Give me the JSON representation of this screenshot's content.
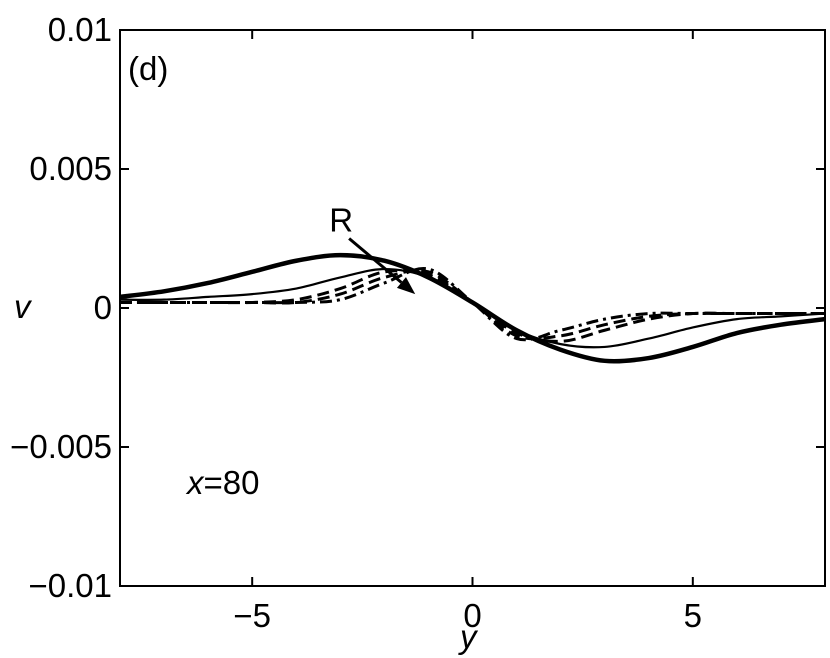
{
  "chart_data": {
    "type": "line",
    "panel_label": "(d)",
    "xlabel": "y",
    "ylabel": "v",
    "xlim": [
      -8,
      8
    ],
    "ylim": [
      -0.01,
      0.01
    ],
    "xticks": [
      -5,
      0,
      5
    ],
    "xtick_labels": [
      "−5",
      "0",
      "5"
    ],
    "yticks": [
      -0.01,
      -0.005,
      0,
      0.005,
      0.01
    ],
    "ytick_labels": [
      "−0.01",
      "−0.005",
      "0",
      "0.005",
      "0.01"
    ],
    "grid": false,
    "annotation": {
      "text": "R",
      "arrow_from": [
        -2.8,
        0.0025
      ],
      "arrow_to": [
        -1.3,
        0.0005
      ]
    },
    "position_label": {
      "var": "x",
      "value": "=80"
    },
    "series": [
      {
        "style": "thick-solid",
        "x": [
          -8,
          -7,
          -6,
          -5,
          -4,
          -3,
          -2,
          -1,
          0,
          1,
          2,
          3,
          4,
          5,
          6,
          7,
          8
        ],
        "values": [
          0.0004,
          0.0006,
          0.0009,
          0.0013,
          0.0017,
          0.0019,
          0.0017,
          0.0011,
          0.0002,
          -0.0008,
          -0.0015,
          -0.0019,
          -0.0018,
          -0.0014,
          -0.0009,
          -0.0006,
          -0.0004
        ]
      },
      {
        "style": "solid",
        "x": [
          -8,
          -7,
          -6,
          -5,
          -4,
          -3,
          -2,
          -1,
          0,
          1,
          2,
          3,
          4,
          5,
          6,
          7,
          8
        ],
        "values": [
          0.0003,
          0.0003,
          0.0004,
          0.0005,
          0.0007,
          0.0011,
          0.0014,
          0.0011,
          0.0002,
          -0.0008,
          -0.0013,
          -0.0014,
          -0.0011,
          -0.0007,
          -0.0004,
          -0.0003,
          -0.0002
        ]
      },
      {
        "style": "dashed",
        "x": [
          -8,
          -7,
          -6,
          -5,
          -4,
          -3,
          -2,
          -1,
          0,
          1,
          2,
          3,
          4,
          5,
          6,
          7,
          8
        ],
        "values": [
          0.0002,
          0.0002,
          0.0002,
          0.0002,
          0.0003,
          0.0007,
          0.0013,
          0.0012,
          0.0002,
          -0.0009,
          -0.0012,
          -0.0008,
          -0.0004,
          -0.0002,
          -0.0002,
          -0.0002,
          -0.0002
        ]
      },
      {
        "style": "dashed",
        "x": [
          -8,
          -7,
          -6,
          -5,
          -4,
          -3,
          -2,
          -1,
          0,
          1,
          2,
          3,
          4,
          5,
          6,
          7,
          8
        ],
        "values": [
          0.0002,
          0.0002,
          0.0002,
          0.0002,
          0.0002,
          0.0005,
          0.0011,
          0.0013,
          0.0002,
          -0.001,
          -0.001,
          -0.0006,
          -0.0003,
          -0.0002,
          -0.0002,
          -0.0002,
          -0.0002
        ]
      },
      {
        "style": "dash-dot",
        "x": [
          -8,
          -7,
          -6,
          -5,
          -4,
          -3,
          -2,
          -1,
          0,
          1,
          2,
          3,
          4,
          5,
          6,
          7,
          8
        ],
        "values": [
          0.0002,
          0.0002,
          0.0002,
          0.0002,
          0.0002,
          0.0003,
          0.0009,
          0.0014,
          0.0002,
          -0.0011,
          -0.0008,
          -0.0004,
          -0.0002,
          -0.0002,
          -0.0002,
          -0.0002,
          -0.0002
        ]
      }
    ]
  }
}
